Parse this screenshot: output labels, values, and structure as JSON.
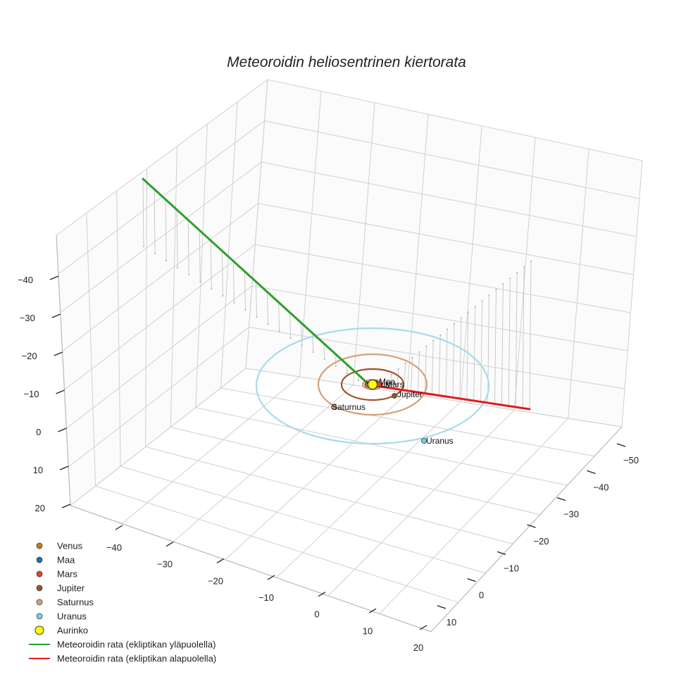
{
  "chart_data": {
    "type": "scatter3d",
    "title": "Meteoroidin heliosentrinen kiertorata",
    "axes": {
      "x": {
        "ticks": [
          -40,
          -30,
          -20,
          -10,
          0,
          10,
          20
        ]
      },
      "y": {
        "ticks": [
          -50,
          -40,
          -30,
          -20,
          -10,
          0,
          10
        ]
      },
      "z": {
        "ticks": [
          -40,
          -30,
          -20,
          -10,
          0,
          10,
          20
        ]
      }
    },
    "planets": [
      {
        "name": "Venus",
        "color": "#c8781e",
        "label": "Venus"
      },
      {
        "name": "Maa",
        "color": "#1f6fb4",
        "label": "Maa"
      },
      {
        "name": "Mars",
        "color": "#d8462b",
        "label": "Mars"
      },
      {
        "name": "Jupiter",
        "color": "#a0522d",
        "label": "Jupiter"
      },
      {
        "name": "Saturnus",
        "color": "#d2a07a",
        "label": "Saturnus"
      },
      {
        "name": "Uranus",
        "color": "#7ecbe6",
        "label": "Uranus"
      }
    ],
    "sun": {
      "name": "Aurinko",
      "color": "#ffff00"
    },
    "orbits": [
      {
        "planet": "Jupiter",
        "color": "#a0522d",
        "radius": 5.2
      },
      {
        "planet": "Saturnus",
        "color": "#d2a07a",
        "radius": 9.5
      },
      {
        "planet": "Uranus",
        "color": "#a8dbea",
        "radius": 19.2
      }
    ],
    "series": [
      {
        "name": "Meteoroidin rata (ekliptikan yläpuolella)",
        "color": "#2ca02c"
      },
      {
        "name": "Meteoroidin rata (ekliptikan alapuolella)",
        "color": "#e31a1c"
      }
    ],
    "legend_position": "bottom-left",
    "grid": true
  }
}
